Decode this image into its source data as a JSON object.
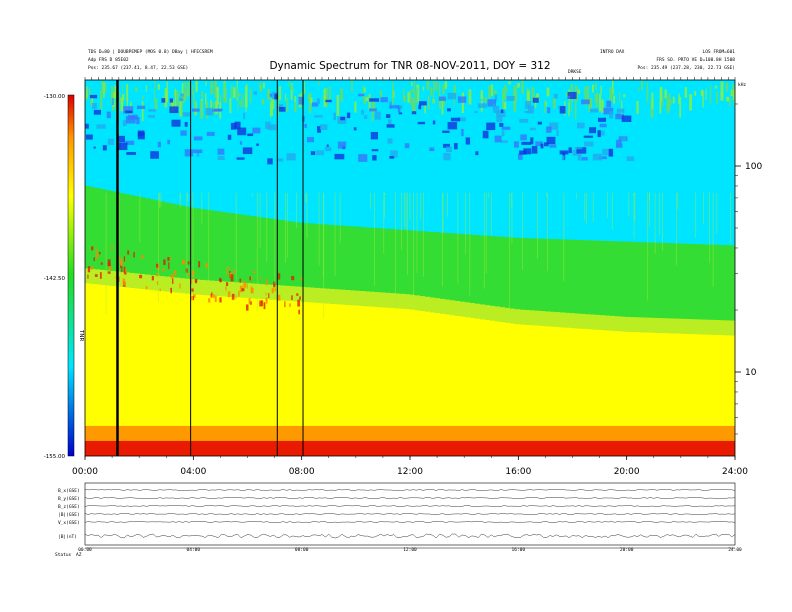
{
  "header": {
    "title": "Dynamic Spectrum for TNR 08-NOV-2011, DOY = 312",
    "left_line1": "TDS D=80 | DOUBPEMEP (MOS 0.8) DBay | HFECSREM",
    "left_line2": "Adp FRS D 85E02",
    "left_line3": "Pos: 235.67 (237.41, 8.47, 22.53 GSE)",
    "right_line1": "LOS FROM=601",
    "right_line2": "FRS SO. PRTO VE D=100.8H 1508",
    "right_line3": "Pos: 235.49 (237.28, 230, 22.73 GSE)",
    "mid_label1": "INTRO DAX",
    "mid_label2": "DRKSE"
  },
  "chart_data": {
    "type": "heatmap",
    "title": "Dynamic Spectrum for TNR 08-NOV-2011, DOY = 312",
    "x_range_hours": [
      0,
      24
    ],
    "x_ticks": [
      "00:00",
      "04:00",
      "08:00",
      "12:00",
      "16:00",
      "20:00",
      "24:00"
    ],
    "y_scale": "log",
    "y_ticks": [
      "100",
      "10"
    ],
    "y_units_label": "kHz",
    "colorbar": {
      "unit_label": "TNR",
      "min_label": "-155.00",
      "mid_label": "-142.50",
      "max_label": "-130.00",
      "colors": [
        "#0000cc",
        "#00e5ff",
        "#22dd22",
        "#ffff00",
        "#ff9900",
        "#dd0000"
      ]
    },
    "background_levels": [
      {
        "hour": 0,
        "band_edge_upper": 0.3,
        "band_edge_lower": 0.53
      },
      {
        "hour": 4,
        "band_edge_upper": 0.36,
        "band_edge_lower": 0.56
      },
      {
        "hour": 8,
        "band_edge_upper": 0.4,
        "band_edge_lower": 0.58
      },
      {
        "hour": 12,
        "band_edge_upper": 0.42,
        "band_edge_lower": 0.6
      },
      {
        "hour": 16,
        "band_edge_upper": 0.44,
        "band_edge_lower": 0.64
      },
      {
        "hour": 20,
        "band_edge_upper": 0.45,
        "band_edge_lower": 0.66
      },
      {
        "hour": 24,
        "band_edge_upper": 0.46,
        "band_edge_lower": 0.67
      }
    ],
    "data_gaps_hours": [
      1.2,
      3.9,
      7.1,
      8.05
    ]
  },
  "sub_panels": {
    "labels": [
      "B_x(GSE)",
      "B_y(GSE)",
      "B_z(GSE)",
      "|B|(GSE)",
      "V_x(GSE)",
      "|B|(nT)"
    ],
    "x_ticks": [
      "00:00",
      "04:00",
      "08:00",
      "12:00",
      "16:00",
      "20:00",
      "24:00"
    ],
    "bottom_label": "Status",
    "bottom_label2": "AZ"
  }
}
